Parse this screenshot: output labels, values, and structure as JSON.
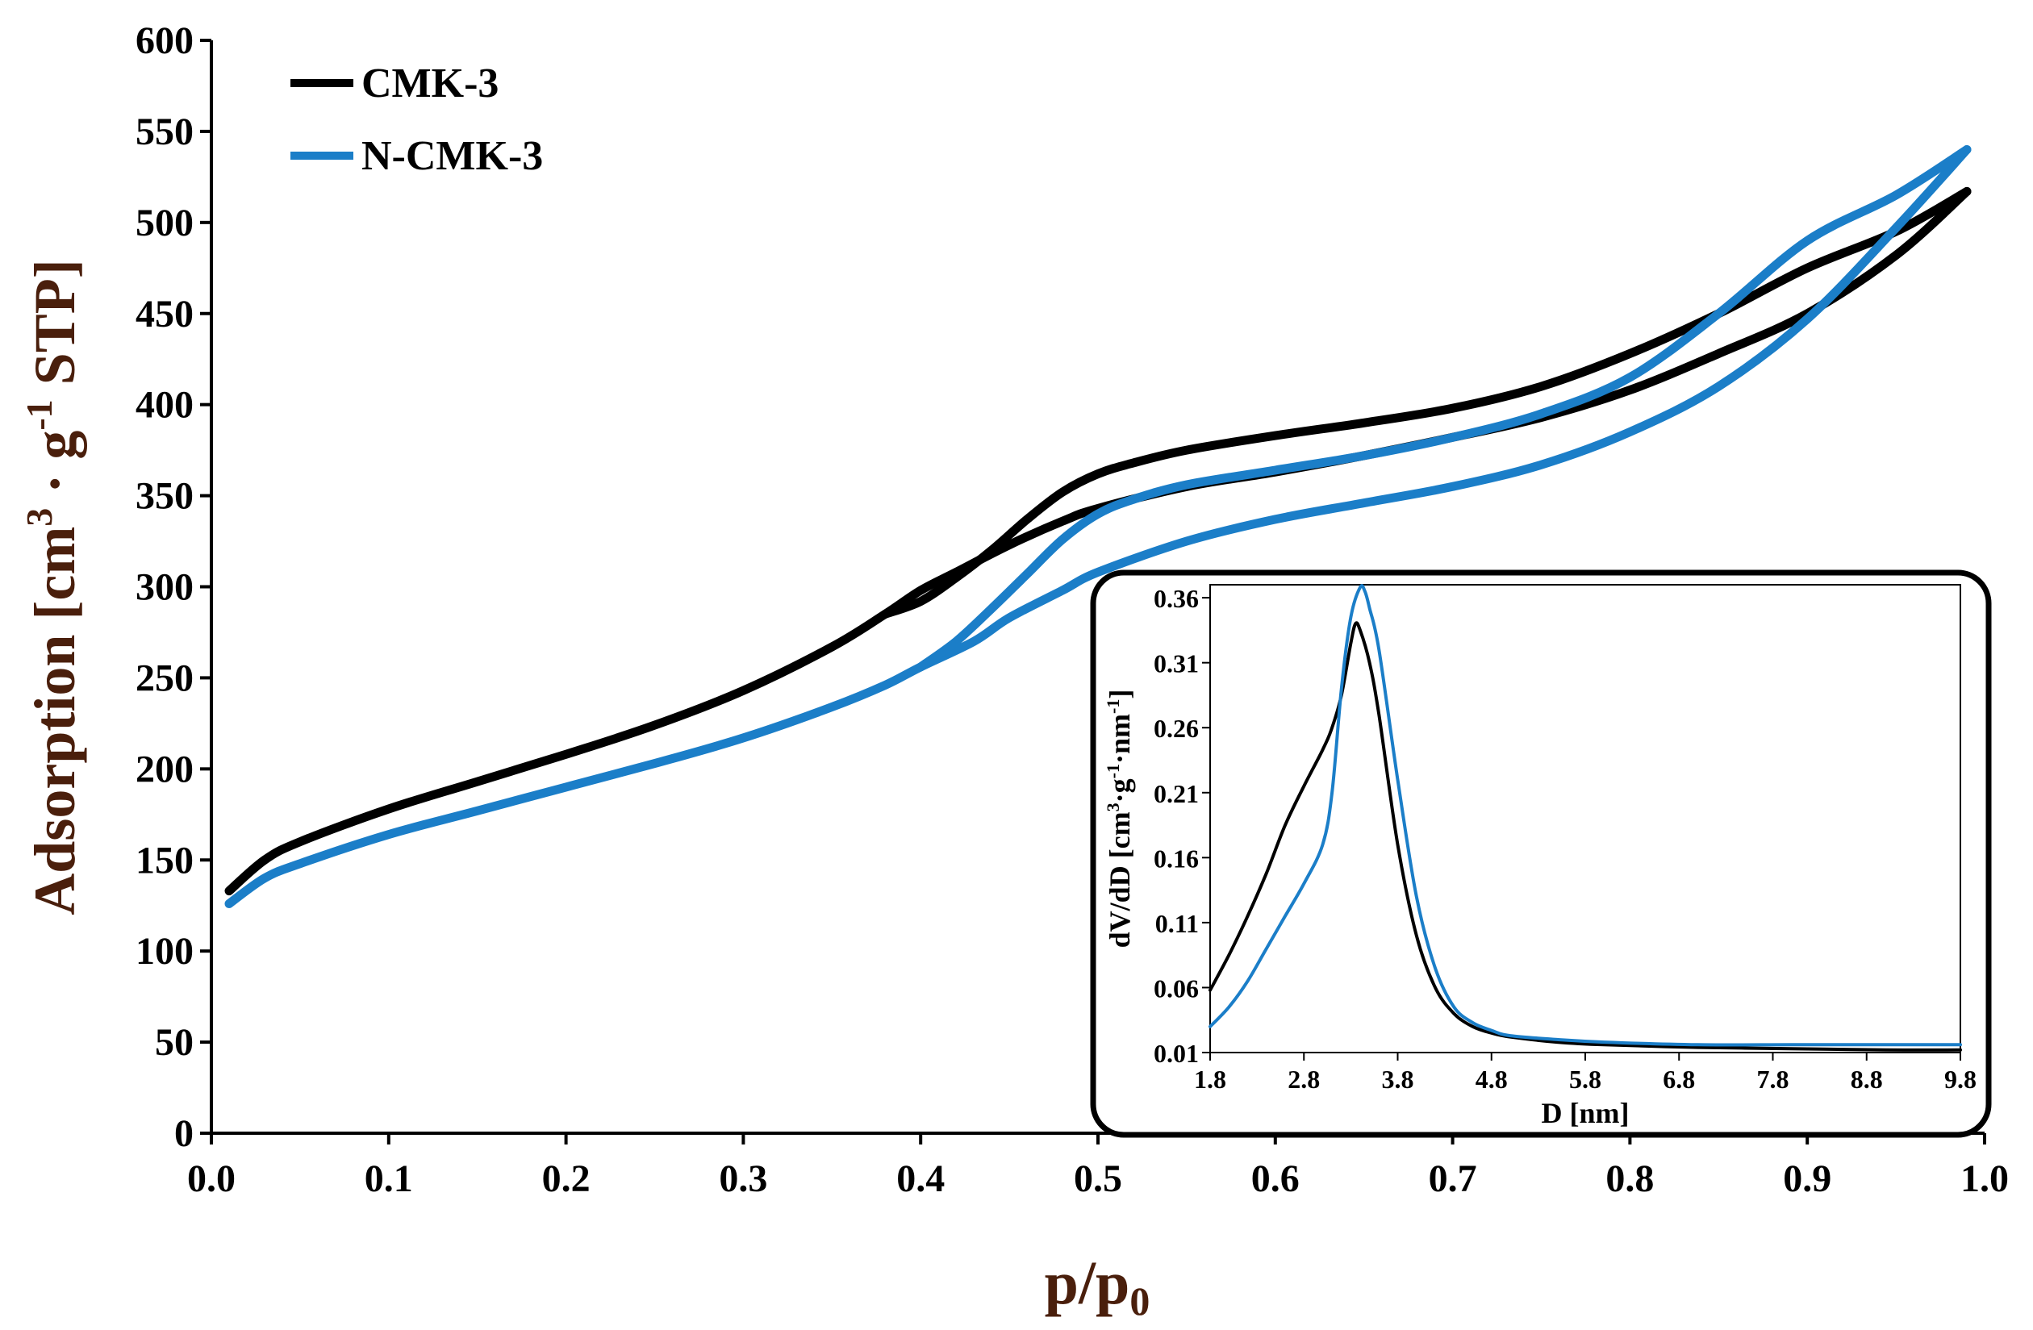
{
  "chart_data": [
    {
      "type": "line",
      "title": "",
      "xlabel": "p/p",
      "xlabel_sub": "0",
      "ylabel_parts": [
        "Adsorption [cm",
        "3",
        " · g",
        "-1",
        " STP]"
      ],
      "xlim": [
        0.0,
        1.0
      ],
      "ylim": [
        0,
        600
      ],
      "x_ticks": [
        0.0,
        0.1,
        0.2,
        0.3,
        0.4,
        0.5,
        0.6,
        0.7,
        0.8,
        0.9,
        1.0
      ],
      "x_tick_labels": [
        "0.0",
        "0.1",
        "0.2",
        "0.3",
        "0.4",
        "0.5",
        "0.6",
        "0.7",
        "0.8",
        "0.9",
        "1.0"
      ],
      "y_ticks": [
        0,
        50,
        100,
        150,
        200,
        250,
        300,
        350,
        400,
        450,
        500,
        550,
        600
      ],
      "y_tick_labels": [
        "0",
        "50",
        "100",
        "150",
        "200",
        "250",
        "300",
        "350",
        "400",
        "450",
        "500",
        "550",
        "600"
      ],
      "grid": false,
      "legend_position": "top-left",
      "series": [
        {
          "name": "CMK-3",
          "color": "#000000",
          "adsorption": {
            "x": [
              0.01,
              0.03,
              0.05,
              0.1,
              0.15,
              0.2,
              0.25,
              0.3,
              0.35,
              0.38,
              0.4,
              0.42,
              0.45,
              0.48,
              0.5,
              0.55,
              0.6,
              0.65,
              0.7,
              0.75,
              0.8,
              0.85,
              0.9,
              0.95,
              0.99
            ],
            "y": [
              133,
              150,
              160,
              178,
              193,
              208,
              224,
              243,
              267,
              285,
              298,
              308,
              323,
              336,
              343,
              355,
              363,
              372,
              382,
              393,
              408,
              428,
              450,
              482,
              517
            ]
          },
          "desorption": {
            "x": [
              0.99,
              0.95,
              0.9,
              0.85,
              0.8,
              0.75,
              0.7,
              0.65,
              0.6,
              0.55,
              0.52,
              0.5,
              0.48,
              0.46,
              0.44,
              0.42,
              0.4,
              0.38
            ],
            "y": [
              517,
              495,
              475,
              450,
              428,
              410,
              398,
              390,
              383,
              375,
              368,
              362,
              352,
              337,
              320,
              305,
              292,
              285
            ]
          }
        },
        {
          "name": "N-CMK-3",
          "color": "#1b7ec8",
          "adsorption": {
            "x": [
              0.01,
              0.03,
              0.05,
              0.1,
              0.15,
              0.2,
              0.25,
              0.3,
              0.35,
              0.38,
              0.4,
              0.43,
              0.45,
              0.48,
              0.5,
              0.55,
              0.6,
              0.65,
              0.7,
              0.75,
              0.8,
              0.85,
              0.9,
              0.95,
              0.99
            ],
            "y": [
              126,
              140,
              148,
              164,
              177,
              190,
              203,
              217,
              234,
              246,
              256,
              270,
              283,
              298,
              308,
              325,
              337,
              346,
              355,
              367,
              385,
              410,
              447,
              497,
              540
            ]
          },
          "desorption": {
            "x": [
              0.99,
              0.95,
              0.9,
              0.85,
              0.8,
              0.75,
              0.7,
              0.65,
              0.6,
              0.55,
              0.52,
              0.5,
              0.48,
              0.46,
              0.44,
              0.42,
              0.4
            ],
            "y": [
              540,
              515,
              490,
              450,
              415,
              395,
              382,
              372,
              364,
              356,
              348,
              340,
              326,
              307,
              288,
              270,
              256
            ]
          }
        }
      ]
    },
    {
      "type": "line",
      "title": "",
      "xlabel": "D [nm]",
      "ylabel_parts": [
        "dV/dD [cm",
        "3",
        "·g",
        "-1",
        "·nm",
        "-1",
        "]"
      ],
      "xlim": [
        1.8,
        9.8
      ],
      "ylim": [
        0.01,
        0.37
      ],
      "x_ticks": [
        1.8,
        2.8,
        3.8,
        4.8,
        5.8,
        6.8,
        7.8,
        8.8,
        9.8
      ],
      "x_tick_labels": [
        "1.8",
        "2.8",
        "3.8",
        "4.8",
        "5.8",
        "6.8",
        "7.8",
        "8.8",
        "9.8"
      ],
      "y_ticks": [
        0.01,
        0.06,
        0.11,
        0.16,
        0.21,
        0.26,
        0.31,
        0.36
      ],
      "y_tick_labels": [
        "0.01",
        "0.06",
        "0.11",
        "0.16",
        "0.21",
        "0.26",
        "0.31",
        "0.36"
      ],
      "grid": false,
      "legend_position": "none",
      "series": [
        {
          "name": "CMK-3",
          "color": "#000000",
          "x": [
            1.8,
            2.0,
            2.2,
            2.4,
            2.6,
            2.8,
            3.0,
            3.1,
            3.2,
            3.3,
            3.35,
            3.4,
            3.5,
            3.6,
            3.8,
            4.0,
            4.2,
            4.4,
            4.6,
            4.8,
            5.0,
            5.5,
            6.0,
            7.0,
            8.0,
            9.0,
            9.8
          ],
          "y": [
            0.058,
            0.085,
            0.115,
            0.148,
            0.185,
            0.215,
            0.243,
            0.26,
            0.285,
            0.325,
            0.34,
            0.335,
            0.31,
            0.27,
            0.17,
            0.1,
            0.06,
            0.04,
            0.03,
            0.025,
            0.022,
            0.018,
            0.016,
            0.014,
            0.013,
            0.012,
            0.012
          ]
        },
        {
          "name": "N-CMK-3",
          "color": "#1b7ec8",
          "x": [
            1.8,
            2.0,
            2.2,
            2.4,
            2.6,
            2.8,
            3.0,
            3.1,
            3.2,
            3.3,
            3.4,
            3.45,
            3.5,
            3.6,
            3.8,
            4.0,
            4.2,
            4.4,
            4.6,
            4.8,
            5.0,
            5.5,
            6.0,
            7.0,
            8.0,
            9.0,
            9.8
          ],
          "y": [
            0.03,
            0.045,
            0.065,
            0.09,
            0.115,
            0.14,
            0.17,
            0.21,
            0.29,
            0.345,
            0.368,
            0.365,
            0.352,
            0.32,
            0.22,
            0.13,
            0.075,
            0.045,
            0.033,
            0.027,
            0.023,
            0.02,
            0.018,
            0.016,
            0.016,
            0.016,
            0.016
          ]
        }
      ]
    }
  ]
}
